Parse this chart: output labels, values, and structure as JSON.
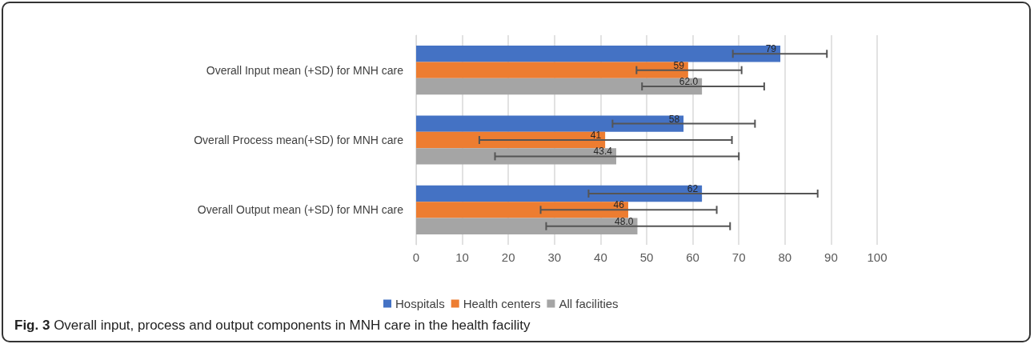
{
  "chart_data": {
    "type": "bar",
    "orientation": "horizontal",
    "categories": [
      "Overall Input mean (+SD) for MNH care",
      "Overall Process mean(+SD) for MNH care",
      "Overall Output mean (+SD) for MNH care"
    ],
    "series": [
      {
        "name": "Hospitals",
        "color": "#4472c4",
        "values": [
          79,
          58,
          62
        ],
        "value_labels": [
          "79",
          "58",
          "62"
        ],
        "errors": [
          [
            68.7,
            89.1
          ],
          [
            42.6,
            73.5
          ],
          [
            37.4,
            87.1
          ]
        ]
      },
      {
        "name": "Health centers",
        "color": "#ed7d31",
        "values": [
          59,
          41,
          46
        ],
        "value_labels": [
          "59",
          "41",
          "46"
        ],
        "errors": [
          [
            47.8,
            70.6
          ],
          [
            13.7,
            68.5
          ],
          [
            27.0,
            65.2
          ]
        ]
      },
      {
        "name": "All facilities",
        "color": "#a5a5a5",
        "values": [
          62.0,
          43.4,
          48.0
        ],
        "value_labels": [
          "62.0",
          "43.4",
          "48.0"
        ],
        "errors": [
          [
            49.0,
            75.5
          ],
          [
            17.1,
            70.0
          ],
          [
            28.2,
            68.1
          ]
        ]
      }
    ],
    "xlim": [
      0,
      100
    ],
    "xticks": [
      0,
      10,
      20,
      30,
      40,
      50,
      60,
      70,
      80,
      90,
      100
    ],
    "grid": "x",
    "legend": "bottom",
    "annotations": [
      "Fig. 3 Overall input, process and output components in MNH care in the health facility"
    ]
  }
}
